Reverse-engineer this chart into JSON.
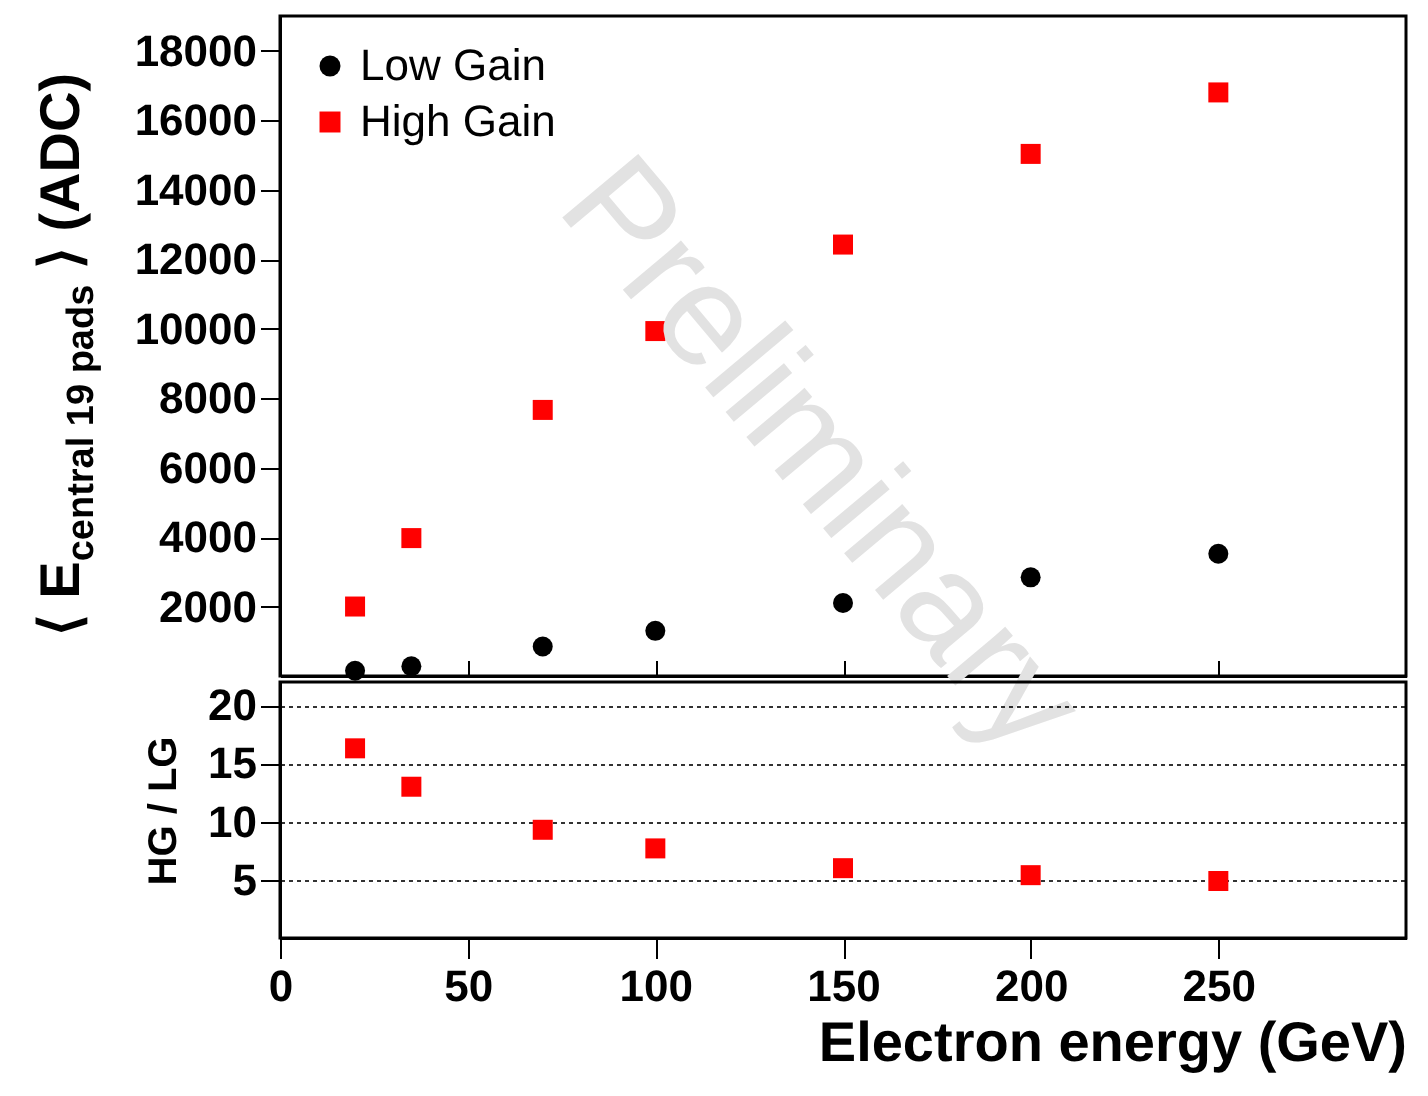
{
  "chart_data": [
    {
      "type": "scatter",
      "ylabel": "⟨ E$_{central 19 pads}$ ⟩ (ADC)",
      "xlim": [
        0,
        300
      ],
      "xticks": [
        0,
        50,
        100,
        150,
        200,
        250
      ],
      "ylim": [
        0,
        19000
      ],
      "yticks": [
        2000,
        4000,
        6000,
        8000,
        10000,
        12000,
        14000,
        16000,
        18000
      ],
      "tick_labels": "y",
      "legend": "top left",
      "annotations": [
        "Preliminary"
      ],
      "x": [
        20,
        35,
        70,
        100,
        150,
        200,
        250
      ],
      "series": [
        {
          "name": "Low Gain",
          "color": "#000000",
          "marker": "circle",
          "values": [
            150,
            280,
            850,
            1300,
            2100,
            2840,
            3520
          ]
        },
        {
          "name": "High Gain",
          "color": "#ff0000",
          "marker": "square",
          "values": [
            2000,
            3970,
            7660,
            9930,
            12420,
            15030,
            16800
          ]
        }
      ]
    },
    {
      "type": "scatter",
      "xlabel": "Electron energy (GeV)",
      "ylabel": "HG / LG",
      "xlim": [
        0,
        300
      ],
      "xticks": [
        0,
        50,
        100,
        150,
        200,
        250
      ],
      "ylim": [
        0,
        22
      ],
      "yticks": [
        5,
        10,
        15,
        20
      ],
      "grid": "y",
      "x": [
        20,
        35,
        70,
        100,
        150,
        200,
        250
      ],
      "series": [
        {
          "color": "#ff0000",
          "marker": "square",
          "values": [
            16.3,
            13.0,
            9.3,
            7.7,
            6.0,
            5.4,
            4.9
          ]
        }
      ]
    }
  ]
}
